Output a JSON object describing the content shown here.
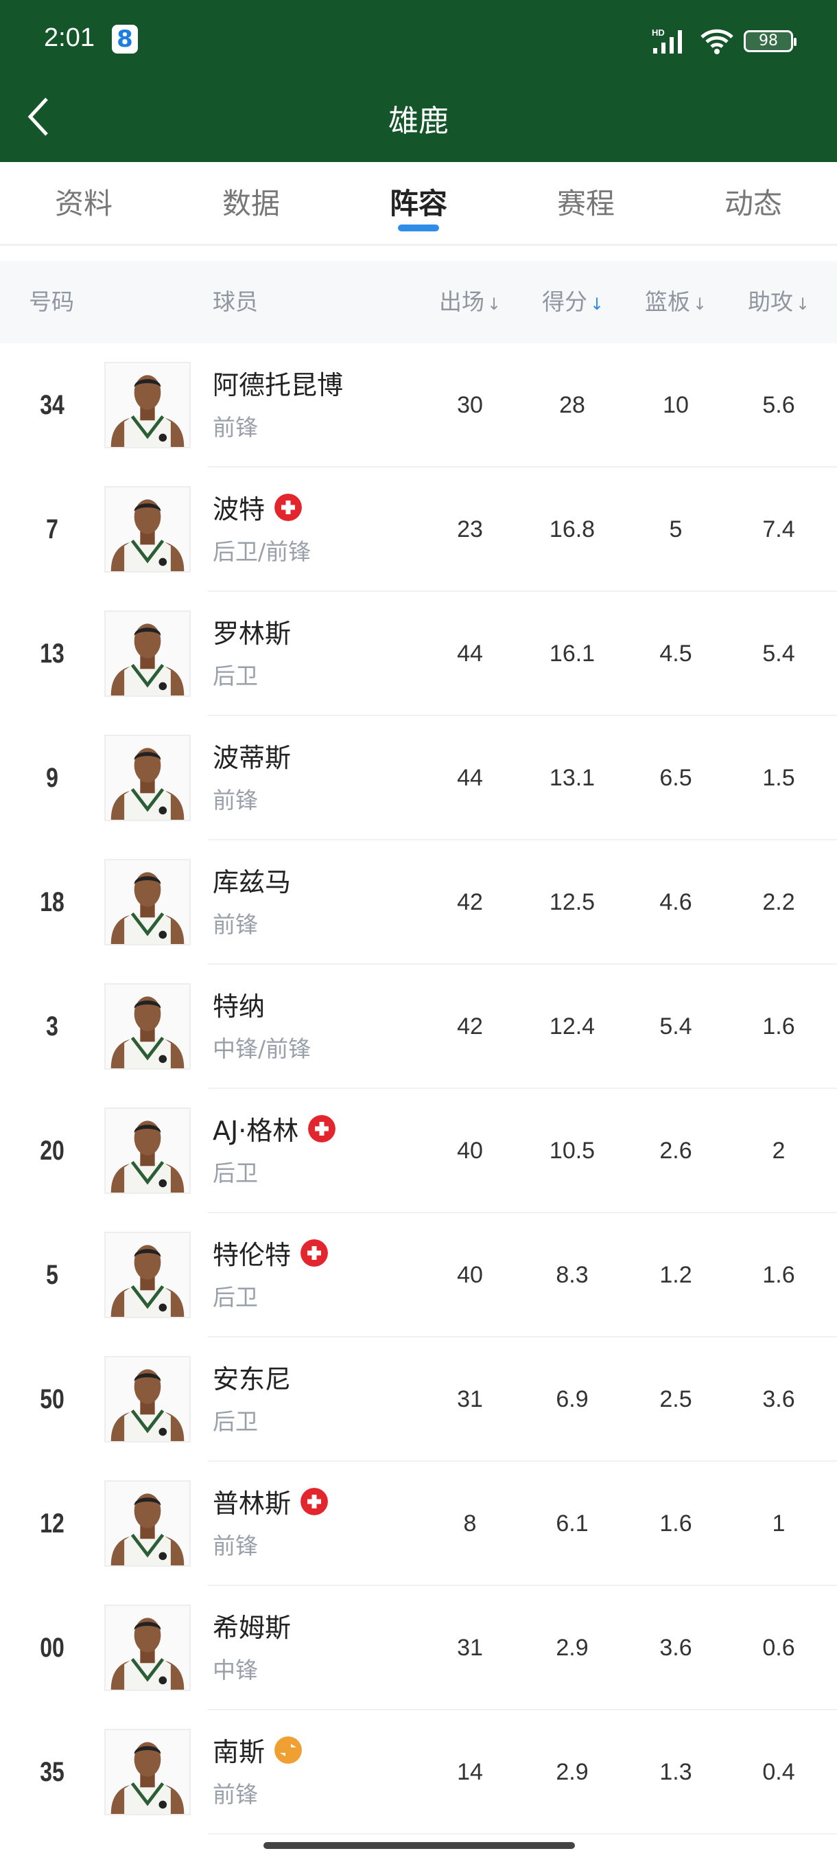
{
  "status": {
    "time": "2:01",
    "notif": "8",
    "network": "HD",
    "battery": "98"
  },
  "header": {
    "title": "雄鹿"
  },
  "tabs": [
    {
      "label": "资料"
    },
    {
      "label": "数据"
    },
    {
      "label": "阵容",
      "active": true
    },
    {
      "label": "赛程"
    },
    {
      "label": "动态"
    }
  ],
  "table": {
    "columns": {
      "number": "号码",
      "player": "球员",
      "games": "出场",
      "points": "得分",
      "rebounds": "篮板",
      "assists": "助攻"
    },
    "sorted_by": "points",
    "rows": [
      {
        "number": "34",
        "name": "阿德托昆博",
        "pos": "前锋",
        "games": "30",
        "points": "28",
        "rebounds": "10",
        "assists": "5.6",
        "badge": ""
      },
      {
        "number": "7",
        "name": "波特",
        "pos": "后卫/前锋",
        "games": "23",
        "points": "16.8",
        "rebounds": "5",
        "assists": "7.4",
        "badge": "injury"
      },
      {
        "number": "13",
        "name": "罗林斯",
        "pos": "后卫",
        "games": "44",
        "points": "16.1",
        "rebounds": "4.5",
        "assists": "5.4",
        "badge": ""
      },
      {
        "number": "9",
        "name": "波蒂斯",
        "pos": "前锋",
        "games": "44",
        "points": "13.1",
        "rebounds": "6.5",
        "assists": "1.5",
        "badge": ""
      },
      {
        "number": "18",
        "name": "库兹马",
        "pos": "前锋",
        "games": "42",
        "points": "12.5",
        "rebounds": "4.6",
        "assists": "2.2",
        "badge": ""
      },
      {
        "number": "3",
        "name": "特纳",
        "pos": "中锋/前锋",
        "games": "42",
        "points": "12.4",
        "rebounds": "5.4",
        "assists": "1.6",
        "badge": ""
      },
      {
        "number": "20",
        "name": "AJ·格林",
        "pos": "后卫",
        "games": "40",
        "points": "10.5",
        "rebounds": "2.6",
        "assists": "2",
        "badge": "injury"
      },
      {
        "number": "5",
        "name": "特伦特",
        "pos": "后卫",
        "games": "40",
        "points": "8.3",
        "rebounds": "1.2",
        "assists": "1.6",
        "badge": "injury"
      },
      {
        "number": "50",
        "name": "安东尼",
        "pos": "后卫",
        "games": "31",
        "points": "6.9",
        "rebounds": "2.5",
        "assists": "3.6",
        "badge": ""
      },
      {
        "number": "12",
        "name": "普林斯",
        "pos": "前锋",
        "games": "8",
        "points": "6.1",
        "rebounds": "1.6",
        "assists": "1",
        "badge": "injury"
      },
      {
        "number": "00",
        "name": "希姆斯",
        "pos": "中锋",
        "games": "31",
        "points": "2.9",
        "rebounds": "3.6",
        "assists": "0.6",
        "badge": ""
      },
      {
        "number": "35",
        "name": "南斯",
        "pos": "前锋",
        "games": "14",
        "points": "2.9",
        "rebounds": "1.3",
        "assists": "0.4",
        "badge": "transfer"
      }
    ]
  },
  "colors": {
    "header_bg": "#14552a",
    "accent": "#2f8de8",
    "injury": "#e3262e",
    "transfer": "#f0a033"
  }
}
